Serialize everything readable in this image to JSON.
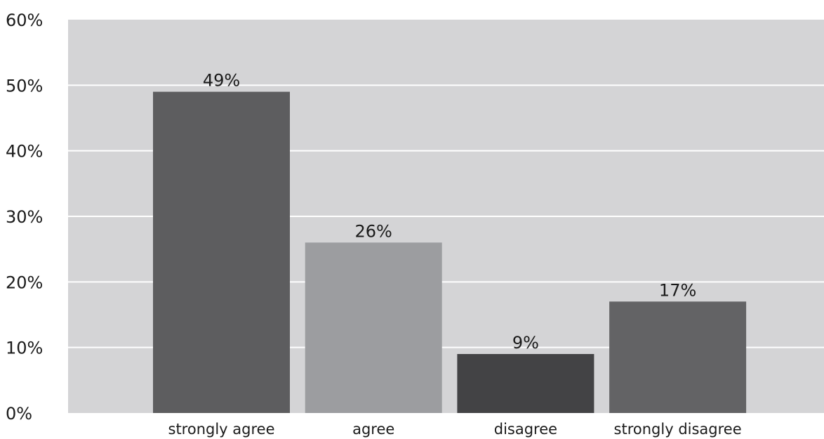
{
  "chart_data": {
    "type": "bar",
    "categories": [
      "strongly agree",
      "agree",
      "disagree",
      "strongly disagree"
    ],
    "values": [
      49,
      26,
      9,
      17
    ],
    "data_labels": [
      "49%",
      "26%",
      "9%",
      "17%"
    ],
    "y_ticks": [
      0,
      10,
      20,
      30,
      40,
      50,
      60
    ],
    "y_tick_labels": [
      "0%",
      "10%",
      "20%",
      "30%",
      "40%",
      "50%",
      "60%"
    ],
    "ylim": [
      0,
      60
    ],
    "grid": true,
    "legend": "none",
    "colors": {
      "plot_background": "#d4d4d6",
      "gridline": "#ffffff",
      "bars": [
        "#5d5d5f",
        "#9c9da0",
        "#434345",
        "#636365"
      ]
    }
  }
}
